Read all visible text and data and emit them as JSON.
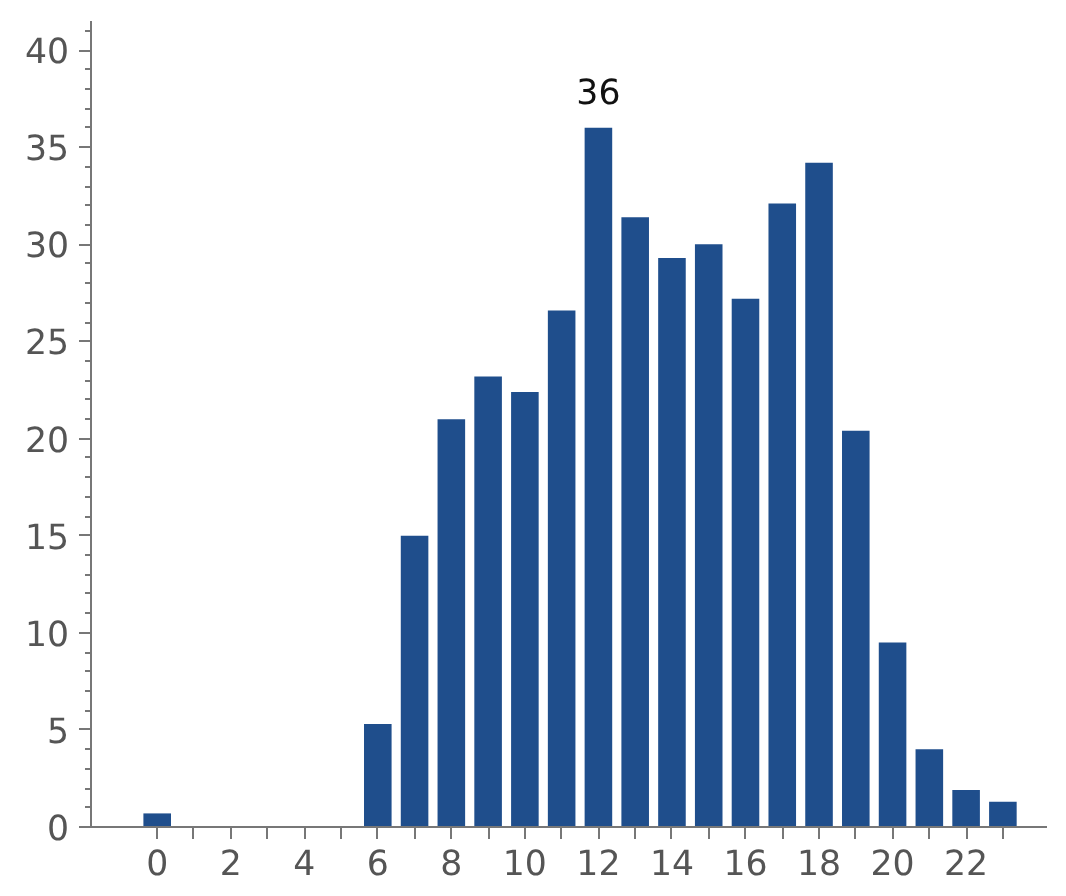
{
  "chart_data": {
    "type": "bar",
    "x": [
      0,
      6,
      7,
      8,
      9,
      10,
      11,
      12,
      13,
      14,
      15,
      16,
      17,
      18,
      19,
      20,
      21,
      22,
      23
    ],
    "values": [
      0.7,
      5.3,
      15,
      21,
      23.2,
      22.4,
      26.6,
      36,
      31.4,
      29.3,
      30,
      27.2,
      32.1,
      34.2,
      20.4,
      9.5,
      4,
      1.9,
      1.3
    ],
    "color": "#1f4e8c",
    "annotations": [
      {
        "text": "36",
        "x": 12,
        "y": 36
      }
    ],
    "xlim": [
      -1.8,
      24.2
    ],
    "ylim": [
      0,
      41.5
    ],
    "xticks": [
      0,
      {
        "value": 1,
        "label": null
      },
      2,
      {
        "value": 3,
        "label": null
      },
      4,
      {
        "value": 5,
        "label": null
      },
      6,
      {
        "value": 7,
        "label": null
      },
      8,
      {
        "value": 9,
        "label": null
      },
      10,
      {
        "value": 11,
        "label": null
      },
      12,
      {
        "value": 13,
        "label": null
      },
      14,
      {
        "value": 15,
        "label": null
      },
      16,
      {
        "value": 17,
        "label": null
      },
      18,
      {
        "value": 19,
        "label": null
      },
      20,
      {
        "value": 21,
        "label": null
      },
      22,
      {
        "value": 23,
        "label": null
      }
    ],
    "yticks": [
      0,
      5,
      10,
      15,
      20,
      25,
      30,
      35,
      40
    ],
    "grid": false
  }
}
